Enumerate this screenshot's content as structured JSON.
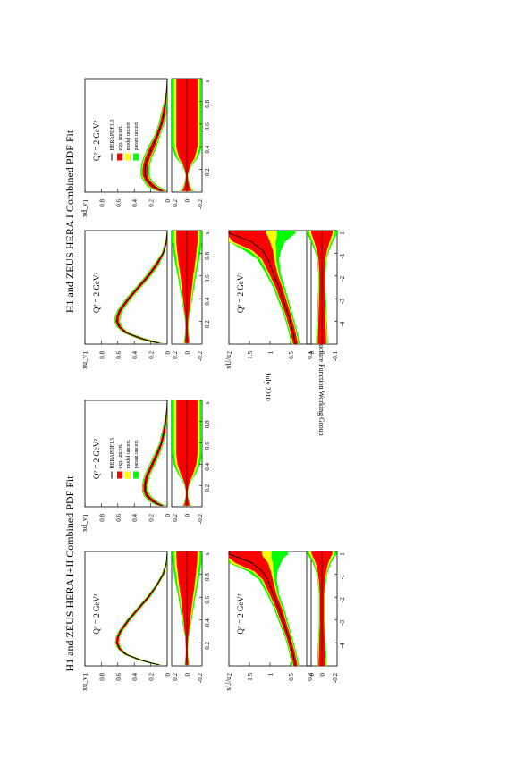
{
  "page": {
    "titles": {
      "upper": "H1 and ZEUS HERA I Combined PDF Fit",
      "lower": "H1 and ZEUS HERA I+II Combined PDF Fit"
    },
    "date": "July 2010",
    "group": "HERA Structure Function Working Group"
  },
  "colors": {
    "exp": "#ff0000",
    "model": "#ffff00",
    "param": "#00ff00",
    "central": "#000000"
  },
  "chart_data": [
    {
      "id": "hera1-xuv",
      "type": "area",
      "scale_label": "Q² = 2 GeV²",
      "ylabel": "xu_v",
      "xscale": "linear",
      "xlim": [
        0,
        1
      ],
      "ylim": [
        0,
        1
      ],
      "yticks": [
        "0",
        "0.2",
        "0.4",
        "0.6",
        "0.8",
        "1"
      ],
      "x": [
        0.01,
        0.02,
        0.05,
        0.1,
        0.15,
        0.2,
        0.25,
        0.3,
        0.4,
        0.5,
        0.6,
        0.7,
        0.8,
        0.9,
        1.0
      ],
      "central": [
        0.1,
        0.17,
        0.32,
        0.5,
        0.58,
        0.61,
        0.6,
        0.57,
        0.47,
        0.35,
        0.23,
        0.13,
        0.05,
        0.01,
        0.0
      ],
      "band": [
        0.03,
        0.03,
        0.03,
        0.02,
        0.02,
        0.02,
        0.02,
        0.02,
        0.02,
        0.02,
        0.02,
        0.02,
        0.01,
        0.01,
        0.0
      ],
      "ratio": {
        "yticks": [
          "0.2",
          "0",
          "-0.2"
        ],
        "ylim": [
          -0.25,
          0.25
        ],
        "uncertainty": [
          0.05,
          0.05,
          0.04,
          0.03,
          0.025,
          0.03,
          0.04,
          0.06,
          0.09,
          0.12,
          0.15,
          0.19,
          0.22,
          0.25,
          0.25
        ]
      },
      "xticks": [
        "0.2",
        "0.4",
        "0.6",
        "0.8",
        "x"
      ]
    },
    {
      "id": "hera1-xdv",
      "type": "area",
      "scale_label": "Q² = 2 GeV²",
      "ylabel": "xd_v",
      "xscale": "linear",
      "xlim": [
        0,
        1
      ],
      "ylim": [
        0,
        1
      ],
      "yticks": [
        "0",
        "0.2",
        "0.4",
        "0.6",
        "0.8",
        "1"
      ],
      "x": [
        0.01,
        0.02,
        0.05,
        0.1,
        0.15,
        0.2,
        0.25,
        0.3,
        0.4,
        0.5,
        0.6,
        0.7,
        0.8,
        0.9,
        1.0
      ],
      "central": [
        0.06,
        0.1,
        0.17,
        0.24,
        0.27,
        0.27,
        0.26,
        0.24,
        0.18,
        0.12,
        0.07,
        0.04,
        0.02,
        0.005,
        0.0
      ],
      "band": [
        0.04,
        0.04,
        0.04,
        0.03,
        0.03,
        0.03,
        0.03,
        0.03,
        0.03,
        0.02,
        0.02,
        0.02,
        0.01,
        0.005,
        0.0
      ],
      "legend": [
        "HERAPDF1.0",
        "exp. uncert.",
        "model uncert.",
        "param uncert."
      ],
      "ratio": {
        "yticks": [
          "0.2",
          "0",
          "-0.2"
        ],
        "ylim": [
          -0.25,
          0.25
        ],
        "uncertainty": [
          0.12,
          0.1,
          0.06,
          0.03,
          0.02,
          0.05,
          0.1,
          0.18,
          0.25,
          0.25,
          0.25,
          0.25,
          0.25,
          0.25,
          0.25
        ]
      },
      "xticks": [
        "0.2",
        "0.4",
        "0.6",
        "0.8",
        "x"
      ]
    },
    {
      "id": "hera1-sea",
      "type": "area",
      "scale_label": "Q² = 2 GeV²",
      "ylabel": "xU/u",
      "xscale": "log",
      "xlim": [
        0.0001,
        1
      ],
      "ylim": [
        0,
        2
      ],
      "yticks": [
        "0",
        "0.5",
        "1",
        "1.5",
        "2"
      ],
      "x": [
        0.0001,
        0.0003,
        0.001,
        0.003,
        0.01,
        0.03,
        0.1,
        0.2,
        0.4,
        0.6,
        0.8,
        1.0
      ],
      "central": [
        0.38,
        0.45,
        0.55,
        0.66,
        0.78,
        0.92,
        1.05,
        1.18,
        1.45,
        1.75,
        2.0,
        2.0
      ],
      "band": [
        0.06,
        0.06,
        0.06,
        0.07,
        0.08,
        0.1,
        0.15,
        0.25,
        0.45,
        0.7,
        0.9,
        0.9
      ],
      "ratio": {
        "yticks": [
          "0.1",
          "0",
          "-0.1"
        ],
        "ylim": [
          -0.25,
          0.25
        ],
        "uncertainty": [
          0.1,
          0.09,
          0.08,
          0.07,
          0.06,
          0.06,
          0.08,
          0.12,
          0.18,
          0.22,
          0.25,
          0.25
        ]
      },
      "xticks": [
        "-4",
        "-3",
        "-2",
        "-1",
        "1"
      ]
    },
    {
      "id": "hera12-xuv",
      "type": "area",
      "scale_label": "Q² = 2 GeV²",
      "ylabel": "xu_v",
      "xscale": "linear",
      "xlim": [
        0,
        1
      ],
      "ylim": [
        0,
        1
      ],
      "yticks": [
        "0",
        "0.2",
        "0.4",
        "0.6",
        "0.8",
        "1"
      ],
      "x": [
        0.01,
        0.02,
        0.05,
        0.1,
        0.15,
        0.2,
        0.25,
        0.3,
        0.4,
        0.5,
        0.6,
        0.7,
        0.8,
        0.9,
        1.0
      ],
      "central": [
        0.1,
        0.17,
        0.32,
        0.5,
        0.58,
        0.61,
        0.6,
        0.57,
        0.47,
        0.35,
        0.23,
        0.13,
        0.05,
        0.01,
        0.0
      ],
      "band": [
        0.02,
        0.02,
        0.02,
        0.015,
        0.015,
        0.015,
        0.015,
        0.015,
        0.015,
        0.015,
        0.015,
        0.01,
        0.01,
        0.005,
        0.0
      ],
      "ratio": {
        "yticks": [
          "0.2",
          "0",
          "-0.2"
        ],
        "ylim": [
          -0.25,
          0.25
        ],
        "uncertainty": [
          0.04,
          0.035,
          0.03,
          0.02,
          0.02,
          0.025,
          0.03,
          0.05,
          0.08,
          0.11,
          0.14,
          0.18,
          0.21,
          0.24,
          0.25
        ]
      },
      "xticks": [
        "0.2",
        "0.4",
        "0.6",
        "0.8",
        "x"
      ]
    },
    {
      "id": "hera12-xdv",
      "type": "area",
      "scale_label": "Q² = 2 GeV²",
      "ylabel": "xd_v",
      "xscale": "linear",
      "xlim": [
        0,
        1
      ],
      "ylim": [
        0,
        1
      ],
      "yticks": [
        "0",
        "0.2",
        "0.4",
        "0.6",
        "0.8",
        "1"
      ],
      "x": [
        0.01,
        0.02,
        0.05,
        0.1,
        0.15,
        0.2,
        0.25,
        0.3,
        0.4,
        0.5,
        0.6,
        0.7,
        0.8,
        0.9,
        1.0
      ],
      "central": [
        0.06,
        0.1,
        0.17,
        0.24,
        0.27,
        0.27,
        0.26,
        0.24,
        0.18,
        0.12,
        0.07,
        0.04,
        0.02,
        0.005,
        0.0
      ],
      "band": [
        0.03,
        0.03,
        0.03,
        0.025,
        0.02,
        0.02,
        0.02,
        0.02,
        0.02,
        0.02,
        0.015,
        0.015,
        0.01,
        0.005,
        0.0
      ],
      "legend": [
        "HERAPDF1.5",
        "exp. uncert.",
        "model uncert.",
        "param uncert."
      ],
      "ratio": {
        "yticks": [
          "0.2",
          "0",
          "-0.2"
        ],
        "ylim": [
          -0.25,
          0.25
        ],
        "uncertainty": [
          0.08,
          0.06,
          0.04,
          0.02,
          0.02,
          0.04,
          0.08,
          0.14,
          0.22,
          0.25,
          0.25,
          0.25,
          0.25,
          0.25,
          0.25
        ]
      },
      "xticks": [
        "0.2",
        "0.4",
        "0.6",
        "0.8",
        "x"
      ]
    },
    {
      "id": "hera12-sea",
      "type": "area",
      "scale_label": "Q² = 2 GeV²",
      "ylabel": "xU/u",
      "xscale": "log",
      "xlim": [
        0.0001,
        1
      ],
      "ylim": [
        0,
        2
      ],
      "yticks": [
        "0",
        "0.5",
        "1",
        "1.5",
        "2"
      ],
      "x": [
        0.0001,
        0.0003,
        0.001,
        0.003,
        0.01,
        0.03,
        0.1,
        0.2,
        0.4,
        0.6,
        0.8,
        1.0
      ],
      "central": [
        0.38,
        0.45,
        0.55,
        0.66,
        0.78,
        0.92,
        1.05,
        1.18,
        1.45,
        1.75,
        2.0,
        2.0
      ],
      "band": [
        0.05,
        0.05,
        0.05,
        0.06,
        0.07,
        0.08,
        0.12,
        0.2,
        0.4,
        0.6,
        0.8,
        0.8
      ],
      "ratio": {
        "yticks": [
          "0.2",
          "0",
          "-0.2"
        ],
        "ylim": [
          -0.25,
          0.25
        ],
        "uncertainty": [
          0.08,
          0.07,
          0.06,
          0.05,
          0.05,
          0.05,
          0.07,
          0.1,
          0.15,
          0.2,
          0.24,
          0.25
        ]
      },
      "xticks": [
        "-4",
        "-3",
        "-2",
        "-1",
        "1"
      ]
    }
  ]
}
